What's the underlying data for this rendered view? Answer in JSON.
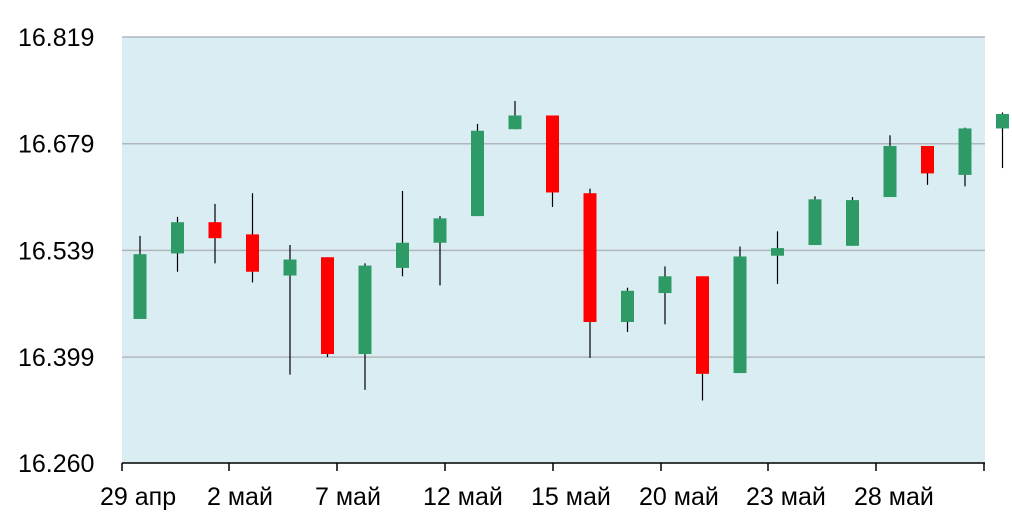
{
  "chart_data": {
    "type": "candlestick",
    "title": "",
    "xlabel": "",
    "ylabel": "",
    "ylim": [
      16.26,
      16.819
    ],
    "yticks": [
      "16.819",
      "16.679",
      "16.539",
      "16.399",
      "16.260"
    ],
    "xticks": [
      "29 апр",
      "2 май",
      "7 май",
      "12 май",
      "15 май",
      "20 май",
      "23 май",
      "28 май"
    ],
    "grid": true,
    "colors": {
      "background": "#daedf3",
      "up": "#2e9b67",
      "down": "#ff0000",
      "wick": "#000000",
      "grid": "#b0b8bc"
    },
    "candles": [
      {
        "open": 16.449,
        "high": 16.558,
        "low": 16.449,
        "close": 16.534
      },
      {
        "open": 16.535,
        "high": 16.583,
        "low": 16.511,
        "close": 16.576
      },
      {
        "open": 16.576,
        "high": 16.6,
        "low": 16.522,
        "close": 16.555
      },
      {
        "open": 16.56,
        "high": 16.614,
        "low": 16.497,
        "close": 16.511
      },
      {
        "open": 16.506,
        "high": 16.546,
        "low": 16.376,
        "close": 16.527
      },
      {
        "open": 16.53,
        "high": 16.53,
        "low": 16.399,
        "close": 16.403
      },
      {
        "open": 16.403,
        "high": 16.522,
        "low": 16.356,
        "close": 16.519
      },
      {
        "open": 16.516,
        "high": 16.617,
        "low": 16.505,
        "close": 16.549
      },
      {
        "open": 16.549,
        "high": 16.584,
        "low": 16.493,
        "close": 16.581
      },
      {
        "open": 16.584,
        "high": 16.705,
        "low": 16.584,
        "close": 16.696
      },
      {
        "open": 16.698,
        "high": 16.735,
        "low": 16.698,
        "close": 16.716
      },
      {
        "open": 16.716,
        "high": 16.716,
        "low": 16.596,
        "close": 16.615
      },
      {
        "open": 16.614,
        "high": 16.62,
        "low": 16.398,
        "close": 16.445
      },
      {
        "open": 16.445,
        "high": 16.49,
        "low": 16.432,
        "close": 16.486
      },
      {
        "open": 16.483,
        "high": 16.518,
        "low": 16.442,
        "close": 16.505
      },
      {
        "open": 16.505,
        "high": 16.505,
        "low": 16.342,
        "close": 16.377
      },
      {
        "open": 16.378,
        "high": 16.544,
        "low": 16.378,
        "close": 16.531
      },
      {
        "open": 16.532,
        "high": 16.564,
        "low": 16.495,
        "close": 16.542
      },
      {
        "open": 16.546,
        "high": 16.61,
        "low": 16.546,
        "close": 16.606
      },
      {
        "open": 16.545,
        "high": 16.609,
        "low": 16.545,
        "close": 16.605
      },
      {
        "open": 16.609,
        "high": 16.69,
        "low": 16.609,
        "close": 16.676
      },
      {
        "open": 16.676,
        "high": 16.676,
        "low": 16.625,
        "close": 16.64
      },
      {
        "open": 16.638,
        "high": 16.7,
        "low": 16.623,
        "close": 16.699
      },
      {
        "open": 16.699,
        "high": 16.72,
        "low": 16.647,
        "close": 16.718
      }
    ]
  }
}
